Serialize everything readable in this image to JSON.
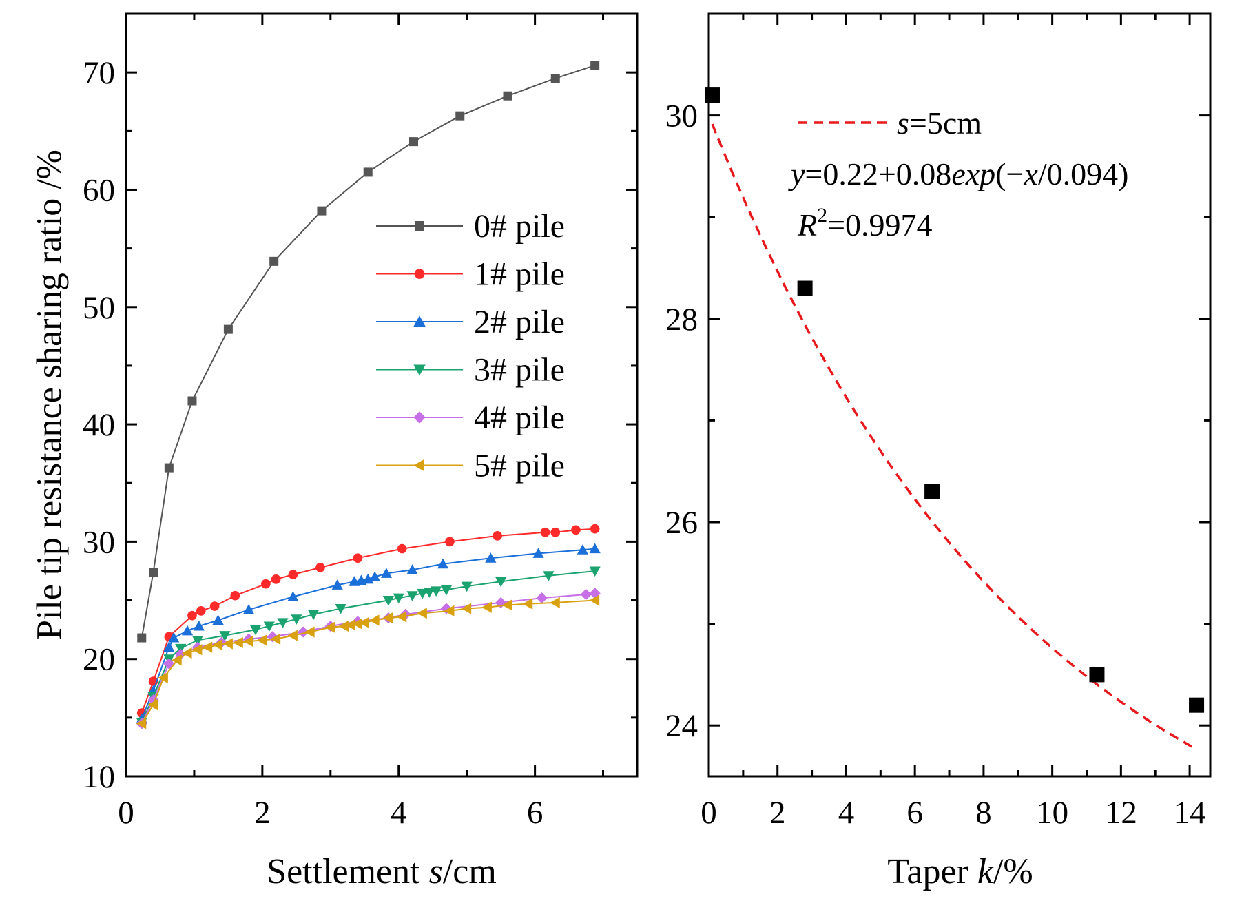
{
  "chart_data": [
    {
      "type": "line",
      "title": "",
      "xlabel": {
        "prefix": "Settlement ",
        "italic": "s",
        "suffix": "/cm"
      },
      "ylabel": "Pile tip resistance sharing ratio /%",
      "xlim": [
        0,
        7.5
      ],
      "ylim": [
        10,
        75
      ],
      "xticks": [
        0,
        2,
        4,
        6
      ],
      "yticks": [
        10,
        20,
        30,
        40,
        50,
        60,
        70
      ],
      "legend_position": "center-right",
      "series": [
        {
          "name": "0# pile",
          "color": "#555555",
          "marker": "square",
          "x": [
            0.23,
            0.4,
            0.63,
            0.97,
            1.5,
            2.17,
            2.87,
            3.55,
            4.22,
            4.9,
            5.6,
            6.3,
            6.88
          ],
          "y": [
            21.8,
            27.4,
            36.3,
            42.0,
            48.1,
            53.9,
            58.2,
            61.5,
            64.1,
            66.3,
            68.0,
            69.5,
            70.6
          ]
        },
        {
          "name": "1# pile",
          "color": "#ff2b2b",
          "marker": "circle",
          "x": [
            0.23,
            0.4,
            0.63,
            0.97,
            1.1,
            1.3,
            1.6,
            2.05,
            2.2,
            2.45,
            2.85,
            3.4,
            4.05,
            4.75,
            5.45,
            6.15,
            6.3,
            6.6,
            6.88
          ],
          "y": [
            15.4,
            18.1,
            21.9,
            23.7,
            24.1,
            24.5,
            25.4,
            26.4,
            26.8,
            27.2,
            27.8,
            28.6,
            29.4,
            30.0,
            30.5,
            30.8,
            30.8,
            31.0,
            31.1
          ]
        },
        {
          "name": "2# pile",
          "color": "#1a6fd8",
          "marker": "triangle-up",
          "x": [
            0.23,
            0.4,
            0.63,
            0.7,
            0.9,
            1.07,
            1.35,
            1.8,
            2.45,
            3.1,
            3.35,
            3.45,
            3.55,
            3.65,
            3.82,
            4.2,
            4.65,
            5.35,
            6.05,
            6.7,
            6.88
          ],
          "y": [
            14.9,
            17.3,
            21.0,
            21.8,
            22.4,
            22.8,
            23.3,
            24.2,
            25.3,
            26.3,
            26.6,
            26.7,
            26.8,
            27.0,
            27.3,
            27.6,
            28.1,
            28.6,
            29.0,
            29.3,
            29.4
          ]
        },
        {
          "name": "3# pile",
          "color": "#1aa36e",
          "marker": "triangle-down",
          "x": [
            0.23,
            0.4,
            0.63,
            0.8,
            1.05,
            1.45,
            1.9,
            2.1,
            2.3,
            2.5,
            2.75,
            3.15,
            3.85,
            4.0,
            4.2,
            4.35,
            4.45,
            4.55,
            4.7,
            5.0,
            5.5,
            6.2,
            6.88
          ],
          "y": [
            14.6,
            16.8,
            20.0,
            20.9,
            21.6,
            22.0,
            22.5,
            22.8,
            23.1,
            23.4,
            23.8,
            24.3,
            25.0,
            25.2,
            25.4,
            25.6,
            25.7,
            25.8,
            25.9,
            26.2,
            26.6,
            27.1,
            27.5
          ]
        },
        {
          "name": "4# pile",
          "color": "#c66fe6",
          "marker": "diamond",
          "x": [
            0.23,
            0.4,
            0.63,
            0.8,
            1.05,
            1.4,
            1.8,
            2.15,
            2.6,
            3.0,
            3.4,
            3.85,
            4.1,
            4.7,
            5.5,
            6.1,
            6.75,
            6.88
          ],
          "y": [
            14.5,
            16.5,
            19.6,
            20.4,
            21.0,
            21.4,
            21.7,
            21.9,
            22.3,
            22.8,
            23.2,
            23.5,
            23.8,
            24.3,
            24.8,
            25.2,
            25.5,
            25.6
          ]
        },
        {
          "name": "5# pile",
          "color": "#d9a00f",
          "marker": "triangle-left",
          "x": [
            0.23,
            0.4,
            0.55,
            0.75,
            0.9,
            1.05,
            1.2,
            1.35,
            1.5,
            1.65,
            1.8,
            2.0,
            2.2,
            2.45,
            2.7,
            3.0,
            3.2,
            3.3,
            3.4,
            3.5,
            3.65,
            3.85,
            4.05,
            4.35,
            4.75,
            5.0,
            5.3,
            5.6,
            5.9,
            6.3,
            6.88
          ],
          "y": [
            14.5,
            16.1,
            18.4,
            19.9,
            20.5,
            20.8,
            21.0,
            21.2,
            21.3,
            21.4,
            21.5,
            21.6,
            21.7,
            22.0,
            22.3,
            22.7,
            22.8,
            22.9,
            23.0,
            23.1,
            23.3,
            23.5,
            23.6,
            23.9,
            24.1,
            24.3,
            24.4,
            24.6,
            24.7,
            24.8,
            25.0
          ]
        }
      ]
    },
    {
      "type": "scatter",
      "title": "",
      "xlabel": {
        "prefix": "Taper ",
        "italic": "k",
        "suffix": "/%"
      },
      "ylabel": "",
      "xlim": [
        0,
        14.6
      ],
      "ylim": [
        23.5,
        31
      ],
      "xticks": [
        0,
        2,
        4,
        6,
        8,
        10,
        12,
        14
      ],
      "yticks": [
        24,
        26,
        28,
        30
      ],
      "points": {
        "x": [
          0.1,
          2.8,
          6.5,
          11.3,
          14.2
        ],
        "y": [
          30.2,
          28.3,
          26.3,
          24.5,
          24.2
        ],
        "color": "#000000",
        "marker": "square"
      },
      "fit": {
        "name": "s=5cm",
        "color": "#e8191c",
        "style": "dashed",
        "x_range": [
          0.1,
          14.2
        ],
        "model": {
          "a": 0.22,
          "b": 0.08,
          "t": 0.094,
          "x_scale": 0.01,
          "y_scale": 100
        }
      },
      "annotations": {
        "legend_italic": "s",
        "legend_rest": "=5cm",
        "equation": {
          "y": "y",
          "p1": "=0.22+0.08",
          "exp": "exp",
          "p2": "(−",
          "x": "x",
          "p3": "/0.094)"
        },
        "r2": {
          "R": "R",
          "sup": "2",
          "rest": "=0.9974"
        }
      }
    }
  ]
}
